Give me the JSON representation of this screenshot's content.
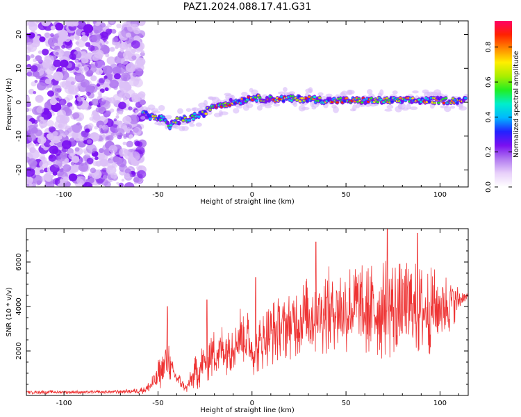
{
  "title": "PAZ1.2024.088.17.41.G31",
  "chart_data": [
    {
      "type": "heatmap",
      "title": "PAZ1.2024.088.17.41.G31",
      "xlabel": "Height of straight line (km)",
      "ylabel": "Frequency (Hz)",
      "xlim": [
        -120,
        115
      ],
      "ylim": [
        -25,
        24
      ],
      "x_ticks": [
        -100,
        -50,
        0,
        50,
        100
      ],
      "y_ticks": [
        -20,
        -10,
        0,
        10,
        20
      ],
      "x_tick_labels": [
        "-100",
        "-50",
        "0",
        "50",
        "100"
      ],
      "y_tick_labels": [
        "-20",
        "-10",
        "0",
        "10",
        "20"
      ],
      "colorbar": {
        "label": "Normalized spectral amplitude",
        "range": [
          0,
          0.95
        ],
        "ticks": [
          0.0,
          0.2,
          0.4,
          0.6,
          0.8
        ],
        "tick_labels": [
          "0.0",
          "0.2",
          "0.4",
          "0.6",
          "0.8"
        ],
        "colormap": [
          "#ffffff",
          "#e8d0fa",
          "#b27bf0",
          "#7a10f0",
          "#2222ff",
          "#00b8ff",
          "#00eecc",
          "#22ee22",
          "#aaee00",
          "#ffee00",
          "#ff8800",
          "#ff2200",
          "#ff0066"
        ]
      },
      "noise_region_x": [
        -120,
        -58
      ],
      "ridge": {
        "x": [
          -58,
          -55,
          -52,
          -50,
          -48,
          -46,
          -44,
          -42,
          -40,
          -38,
          -36,
          -34,
          -32,
          -30,
          -28,
          -26,
          -24,
          -22,
          -20,
          -15,
          -10,
          -5,
          0,
          5,
          10,
          20,
          30,
          40,
          50,
          60,
          70,
          80,
          90,
          100,
          114
        ],
        "freq": [
          -3,
          -4,
          -4.5,
          -5,
          -4.5,
          -6,
          -7.5,
          -6,
          -5.5,
          -5.5,
          -5,
          -5,
          -4.5,
          -4,
          -4,
          -3.5,
          -2.5,
          -1.5,
          -1,
          -0.5,
          0,
          0.5,
          1.5,
          1,
          1,
          1,
          1,
          0.5,
          0.5,
          0.5,
          0.5,
          0.5,
          0.5,
          0.5,
          0.5
        ]
      }
    },
    {
      "type": "line",
      "xlabel": "Height of straight line (km)",
      "ylabel": "SNR (10 * v/v)",
      "xlim": [
        -120,
        115
      ],
      "ylim": [
        0,
        7500
      ],
      "x_ticks": [
        -100,
        -50,
        0,
        50,
        100
      ],
      "y_ticks": [
        2000,
        4000,
        6000
      ],
      "x_tick_labels": [
        "-100",
        "-50",
        "0",
        "50",
        "100"
      ],
      "y_tick_labels": [
        "2000",
        "4000",
        "6000"
      ],
      "color": "#ee3333",
      "envelope": {
        "x": [
          -120,
          -80,
          -60,
          -56,
          -52,
          -50,
          -47,
          -45,
          -44,
          -43,
          -41,
          -38,
          -35,
          -32,
          -30,
          -26,
          -22,
          -18,
          -10,
          -5,
          -2,
          0,
          2,
          5,
          10,
          20,
          30,
          40,
          50,
          55,
          60,
          65,
          70,
          75,
          80,
          85,
          90,
          95,
          100,
          105,
          108,
          110,
          115
        ],
        "base": [
          150,
          150,
          200,
          300,
          600,
          900,
          1200,
          2000,
          1700,
          1200,
          900,
          600,
          300,
          800,
          1000,
          1400,
          1800,
          2000,
          2300,
          2800,
          2500,
          2000,
          2000,
          2400,
          2800,
          3200,
          3600,
          3800,
          3900,
          4000,
          3600,
          3800,
          4000,
          3900,
          3800,
          3900,
          3800,
          3800,
          4000,
          4100,
          4300,
          4300,
          4450
        ],
        "amp": [
          80,
          80,
          120,
          250,
          500,
          700,
          800,
          1600,
          1200,
          600,
          400,
          300,
          200,
          500,
          800,
          1000,
          1100,
          1200,
          1300,
          1500,
          1300,
          1100,
          1100,
          1300,
          1500,
          1600,
          1800,
          2000,
          2100,
          2200,
          2200,
          2300,
          2400,
          2300,
          2200,
          2200,
          2100,
          2000,
          1700,
          1400,
          1000,
          500,
          150
        ]
      },
      "peaks": [
        {
          "x": -45,
          "y": 4000
        },
        {
          "x": -24,
          "y": 4300
        },
        {
          "x": 2,
          "y": 5300
        },
        {
          "x": 34,
          "y": 6900
        },
        {
          "x": 72,
          "y": 7500
        },
        {
          "x": 88,
          "y": 7300
        }
      ]
    }
  ]
}
